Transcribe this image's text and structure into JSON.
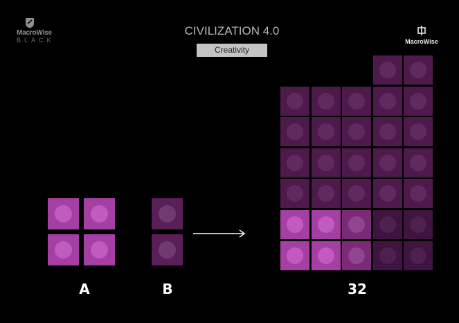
{
  "header": {
    "left_logo": {
      "brand": "MacroWise",
      "sub": "BLACK"
    },
    "title": "CIVILIZATION 4.0",
    "subtitle": "Creativity",
    "right_logo": {
      "brand": "MacroWise"
    }
  },
  "labels": {
    "a": "A",
    "b": "B",
    "result": "32"
  },
  "colors": {
    "bright": "#a63fa3",
    "mid": "#7a2a77",
    "dark": "#4e1a4c",
    "background": "#000000"
  },
  "brick_a": {
    "shape": "2x2",
    "color": "bright"
  },
  "brick_b": {
    "shape": "1x2",
    "color": "dark"
  },
  "result_grid": {
    "columns": 5,
    "rows_from_top": [
      [
        "empty",
        "empty",
        "empty",
        "dark",
        "dark"
      ],
      [
        "dark",
        "dark",
        "dark",
        "dark",
        "dark"
      ],
      [
        "dark",
        "dark",
        "dark",
        "dark",
        "dark"
      ],
      [
        "dark",
        "dark",
        "dark",
        "dark",
        "dark"
      ],
      [
        "dark",
        "dark",
        "dark",
        "dark",
        "dark"
      ],
      [
        "bright",
        "bright",
        "mid",
        "darker",
        "darker"
      ],
      [
        "bright",
        "bright",
        "mid",
        "darker",
        "darker"
      ]
    ]
  }
}
